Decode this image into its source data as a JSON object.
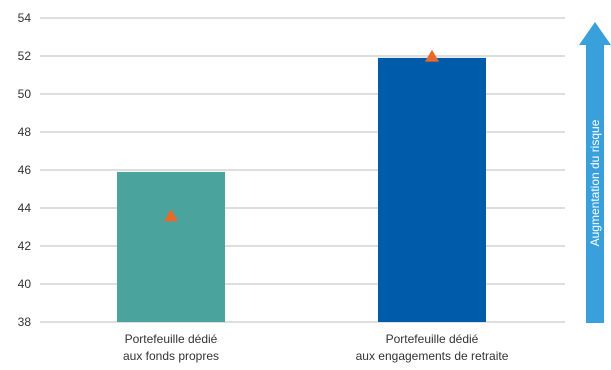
{
  "chart_data": {
    "type": "bar",
    "categories": [
      [
        "Portefeuille dédié",
        "aux fonds propres"
      ],
      [
        "Portefeuille dédié",
        "aux engagements de retraite"
      ]
    ],
    "values": [
      45.9,
      51.9
    ],
    "markers": [
      43.6,
      52.0
    ],
    "ylim": [
      38,
      54
    ],
    "yticks": [
      38,
      40,
      42,
      44,
      46,
      48,
      50,
      52,
      54
    ],
    "grid": true,
    "colors": {
      "bars": [
        "#4aa39c",
        "#005bab"
      ],
      "marker": "#e8692a",
      "arrow": "#3aa0dc",
      "grid": "#bdbdbd"
    },
    "annotation": "Augmentation du risque"
  }
}
